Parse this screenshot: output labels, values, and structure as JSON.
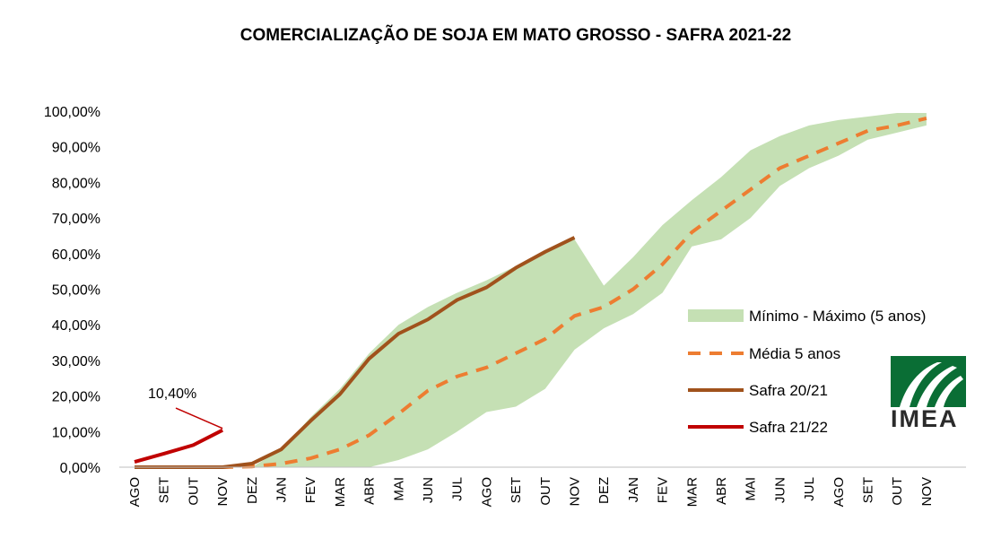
{
  "chart_data": {
    "type": "area",
    "title": "COMERCIALIZAÇÃO DE SOJA EM MATO GROSSO - SAFRA 2021-22",
    "xlabel": "",
    "ylabel": "",
    "ylim": [
      0,
      100
    ],
    "y_ticks": [
      "0,00%",
      "10,00%",
      "20,00%",
      "30,00%",
      "40,00%",
      "50,00%",
      "60,00%",
      "70,00%",
      "80,00%",
      "90,00%",
      "100,00%"
    ],
    "categories": [
      "AGO",
      "SET",
      "OUT",
      "NOV",
      "DEZ",
      "JAN",
      "FEV",
      "MAR",
      "ABR",
      "MAI",
      "JUN",
      "JUL",
      "AGO",
      "SET",
      "OUT",
      "NOV",
      "DEZ",
      "JAN",
      "FEV",
      "MAR",
      "ABR",
      "MAI",
      "JUN",
      "JUL",
      "AGO",
      "SET",
      "OUT",
      "NOV"
    ],
    "grid": false,
    "legend_position": "right",
    "band": {
      "name": "Mínimo - Máximo (5 anos)",
      "color": "#c5e0b4",
      "min": [
        0,
        0,
        0,
        0,
        0,
        0,
        0,
        0,
        0,
        2,
        5,
        10,
        15.5,
        17,
        22,
        33,
        39,
        43,
        49,
        62,
        64,
        70,
        79,
        84,
        87.5,
        92,
        94,
        96
      ],
      "max": [
        0,
        0,
        0,
        0,
        0,
        5,
        14,
        22,
        32,
        40,
        45,
        49,
        52.5,
        56.5,
        61,
        64,
        51,
        59,
        68,
        75,
        81.5,
        89,
        93,
        96,
        97.5,
        98.5,
        99.5,
        99.5
      ]
    },
    "series": [
      {
        "name": "Média 5 anos",
        "color": "#ed7d31",
        "dashed": true,
        "values": [
          0,
          0,
          0,
          0,
          0.2,
          1,
          2.5,
          5,
          9,
          15,
          21.5,
          25.5,
          28,
          32,
          36,
          42.5,
          45,
          50,
          57,
          66,
          72,
          78,
          84,
          87.5,
          91,
          94.5,
          96,
          98
        ]
      },
      {
        "name": "Safra 20/21",
        "color": "#a0521c",
        "dashed": false,
        "values": [
          0,
          0,
          0,
          0,
          1,
          5,
          13,
          20.5,
          30.5,
          37.5,
          41.5,
          47,
          50.5,
          56,
          60.5,
          64.5,
          null,
          null,
          null,
          null,
          null,
          null,
          null,
          null,
          null,
          null,
          null,
          null
        ]
      },
      {
        "name": "Safra 21/22",
        "color": "#c00000",
        "dashed": false,
        "values": [
          1.5,
          3.8,
          6.2,
          10.4,
          null,
          null,
          null,
          null,
          null,
          null,
          null,
          null,
          null,
          null,
          null,
          null,
          null,
          null,
          null,
          null,
          null,
          null,
          null,
          null,
          null,
          null,
          null,
          null
        ]
      }
    ],
    "annotations": [
      {
        "text": "10,40%",
        "target_series": "Safra 21/22",
        "target_category_index": 3,
        "target_value": 10.4
      }
    ]
  },
  "logo": {
    "text": "IMEA",
    "colors": [
      "#0a6e35",
      "#ffffff"
    ]
  }
}
